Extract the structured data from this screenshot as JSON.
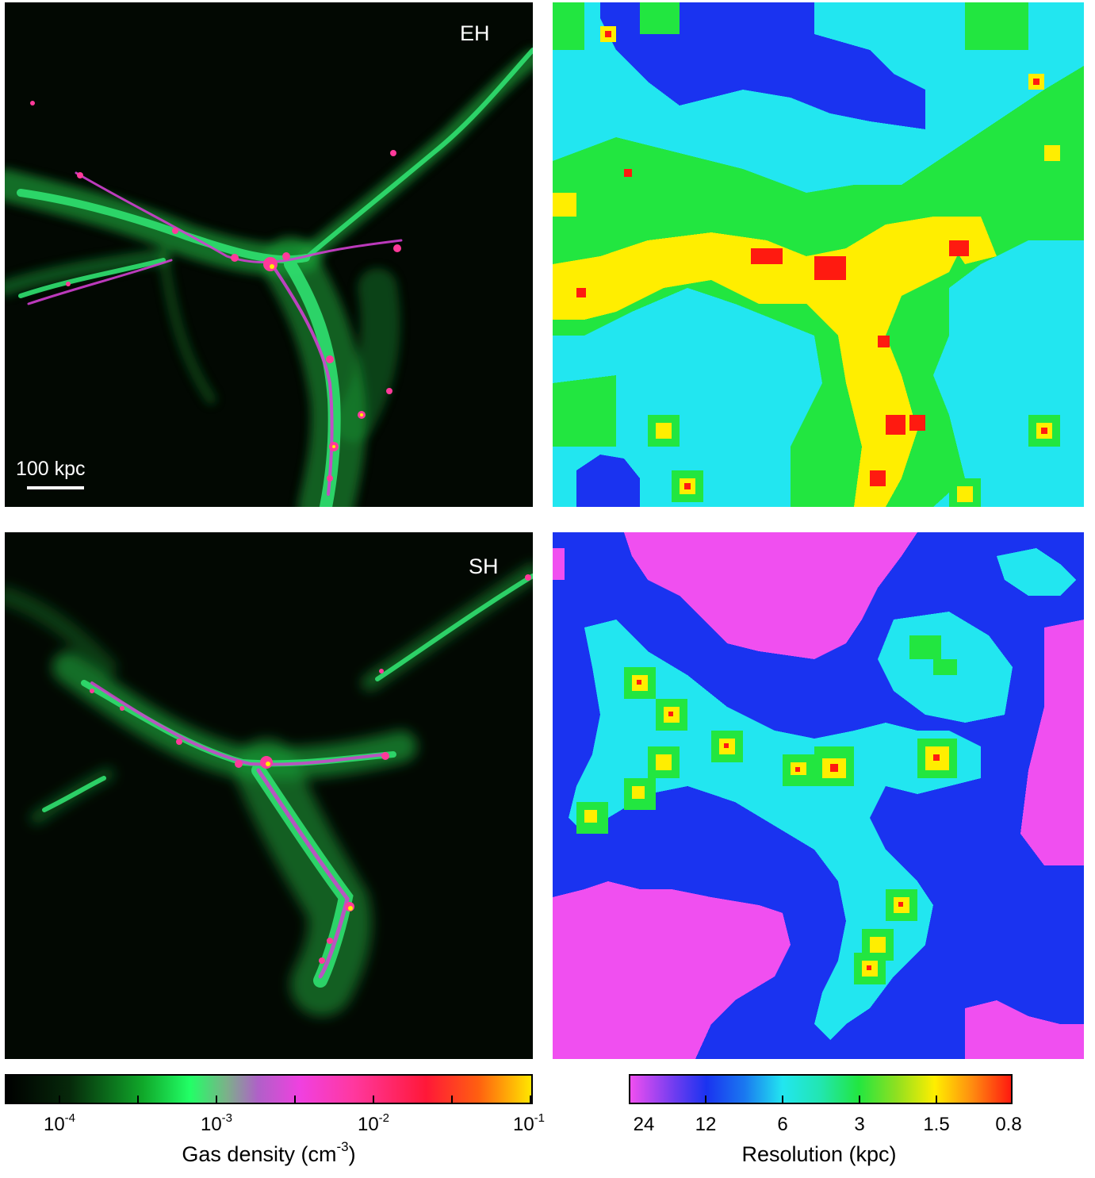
{
  "panels": {
    "eh": {
      "label": "EH"
    },
    "sh": {
      "label": "SH"
    }
  },
  "scalebar": {
    "label": "100 kpc"
  },
  "colorbar_density": {
    "title_prefix": "Gas density (cm",
    "title_exp": "-3",
    "title_suffix": ")",
    "ticks": [
      {
        "base": "10",
        "exp": "-4"
      },
      {
        "base": "10",
        "exp": "-3"
      },
      {
        "base": "10",
        "exp": "-2"
      },
      {
        "base": "10",
        "exp": "-1"
      }
    ]
  },
  "colorbar_resolution": {
    "title": "Resolution (kpc)",
    "ticks": [
      "24",
      "12",
      "6",
      "3",
      "1.5",
      "0.8"
    ]
  },
  "colors": {
    "res_magenta": "#f04ff0",
    "res_blue": "#1a33f0",
    "res_cyan": "#22e6f0",
    "res_green": "#22e640",
    "res_yellow": "#ffee00",
    "res_red": "#ff1a10",
    "density_green": "#22ff66",
    "density_magenta": "#f040e0"
  }
}
